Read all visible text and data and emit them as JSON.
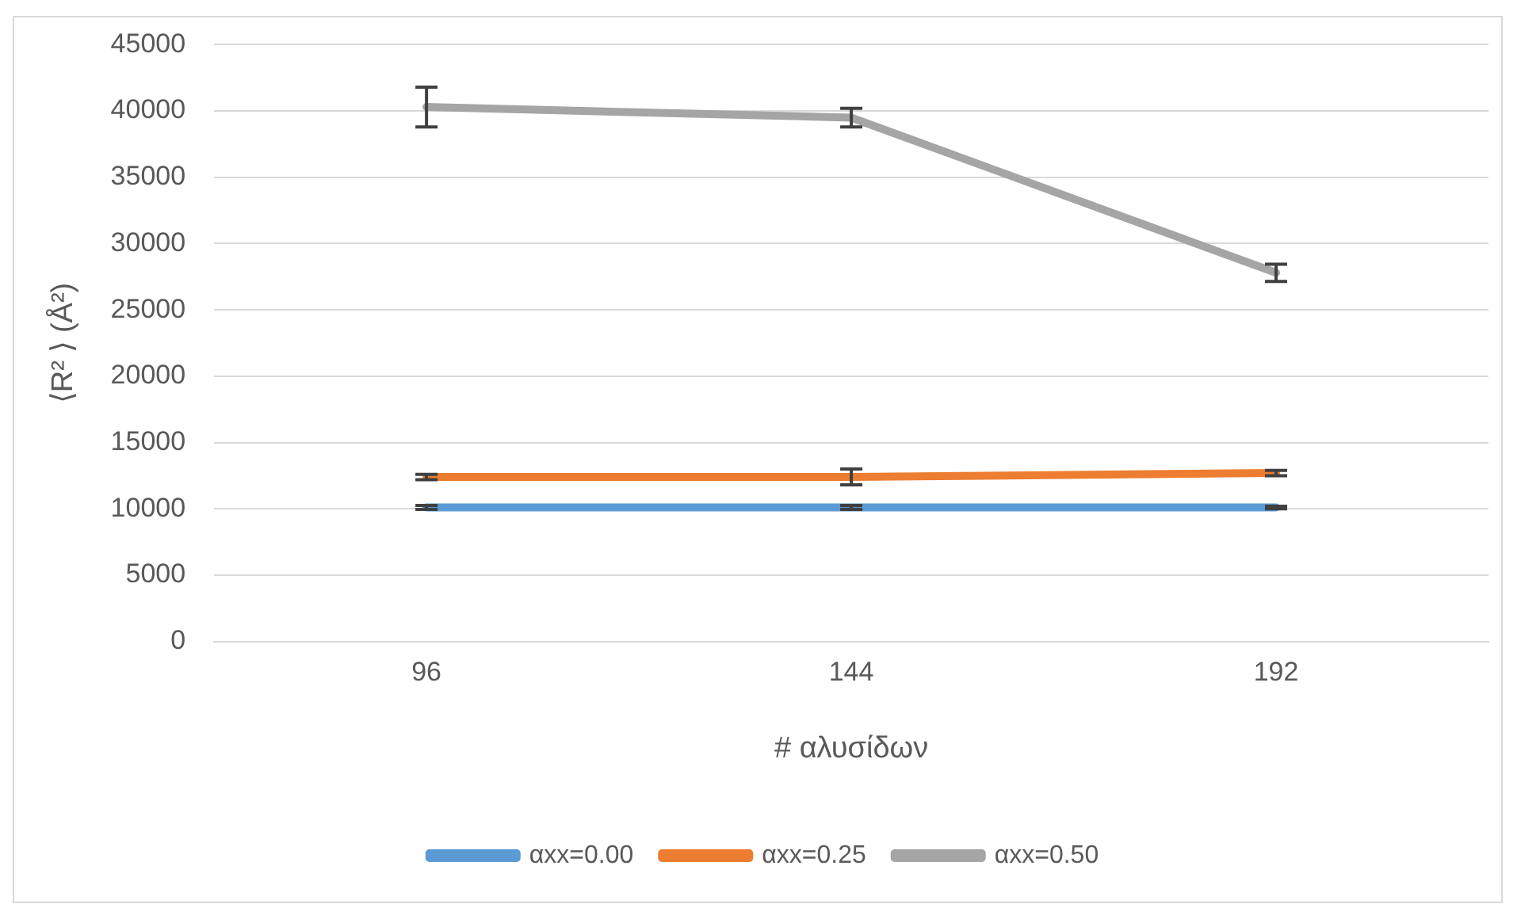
{
  "chart_data": {
    "type": "line",
    "xlabel": "# αλυσίδων",
    "ylabel": "⟨R² ⟩ (Å²)",
    "categories": [
      "96",
      "144",
      "192"
    ],
    "series": [
      {
        "name": "αxx=0.00",
        "color": "#5b9bd5",
        "values": [
          10100,
          10100,
          10100
        ],
        "errors": [
          150,
          150,
          100
        ]
      },
      {
        "name": "αxx=0.25",
        "color": "#ed7d31",
        "values": [
          12400,
          12400,
          12700
        ],
        "errors": [
          200,
          600,
          200
        ]
      },
      {
        "name": "αxx=0.50",
        "color": "#a5a5a5",
        "values": [
          40300,
          39500,
          27800
        ],
        "errors": [
          1500,
          700,
          650
        ]
      }
    ],
    "ylim": [
      0,
      45000
    ],
    "yticks": [
      0,
      5000,
      10000,
      15000,
      20000,
      25000,
      30000,
      35000,
      40000,
      45000
    ],
    "grid": "y",
    "legend": "bottom",
    "line_style": "solid"
  }
}
